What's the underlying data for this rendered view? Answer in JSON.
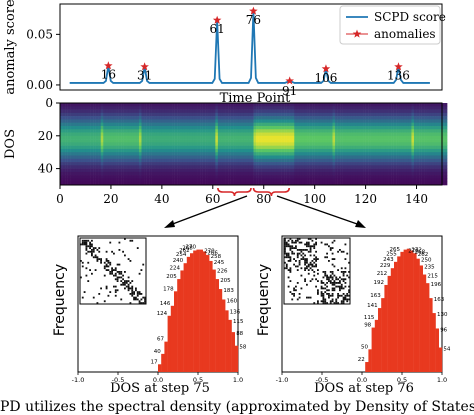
{
  "chart_data": [
    {
      "id": "score",
      "type": "line",
      "ylabel": "anomaly score",
      "xlabel": "Time Point",
      "xlim": [
        -4,
        154
      ],
      "ylim": [
        -0.005,
        0.08
      ],
      "yticks": [
        0.0,
        0.05
      ],
      "ytick_labels": [
        "0.00",
        "0.05"
      ],
      "legend_position": "top-right",
      "colors": {
        "line": "#1f77b4",
        "marker": "#d62728"
      },
      "series": [
        {
          "name": "SCPD score",
          "x": [
            0,
            1,
            2,
            3,
            4,
            5,
            6,
            7,
            8,
            9,
            10,
            11,
            12,
            13,
            14,
            15,
            16,
            17,
            18,
            19,
            20,
            21,
            22,
            23,
            24,
            25,
            26,
            27,
            28,
            29,
            30,
            31,
            32,
            33,
            34,
            35,
            36,
            37,
            38,
            39,
            40,
            41,
            42,
            43,
            44,
            45,
            46,
            47,
            48,
            49,
            50,
            51,
            52,
            53,
            54,
            55,
            56,
            57,
            58,
            59,
            60,
            61,
            62,
            63,
            64,
            65,
            66,
            67,
            68,
            69,
            70,
            71,
            72,
            73,
            74,
            75,
            76,
            77,
            78,
            79,
            80,
            81,
            82,
            83,
            84,
            85,
            86,
            87,
            88,
            89,
            90,
            91,
            92,
            93,
            94,
            95,
            96,
            97,
            98,
            99,
            100,
            101,
            102,
            103,
            104,
            105,
            106,
            107,
            108,
            109,
            110,
            111,
            112,
            113,
            114,
            115,
            116,
            117,
            118,
            119,
            120,
            121,
            122,
            123,
            124,
            125,
            126,
            127,
            128,
            129,
            130,
            131,
            132,
            133,
            134,
            135,
            136,
            137,
            138,
            139,
            140,
            141,
            142,
            143,
            144,
            145,
            146,
            147,
            148,
            149
          ],
          "y": [
            0.002,
            0.002,
            0.002,
            0.002,
            0.002,
            0.002,
            0.002,
            0.002,
            0.002,
            0.002,
            0.002,
            0.002,
            0.002,
            0.002,
            0.002,
            0.004,
            0.019,
            0.004,
            0.002,
            0.002,
            0.002,
            0.002,
            0.002,
            0.002,
            0.002,
            0.002,
            0.002,
            0.002,
            0.002,
            0.002,
            0.004,
            0.018,
            0.004,
            0.002,
            0.002,
            0.002,
            0.002,
            0.002,
            0.002,
            0.002,
            0.002,
            0.002,
            0.002,
            0.002,
            0.002,
            0.002,
            0.002,
            0.002,
            0.002,
            0.002,
            0.002,
            0.002,
            0.002,
            0.002,
            0.002,
            0.002,
            0.002,
            0.002,
            0.002,
            0.002,
            0.006,
            0.064,
            0.006,
            0.002,
            0.002,
            0.002,
            0.002,
            0.002,
            0.002,
            0.002,
            0.002,
            0.002,
            0.002,
            0.002,
            0.002,
            0.007,
            0.073,
            0.007,
            0.002,
            0.002,
            0.002,
            0.002,
            0.002,
            0.002,
            0.002,
            0.002,
            0.002,
            0.002,
            0.002,
            0.002,
            0.003,
            0.004,
            0.003,
            0.002,
            0.002,
            0.002,
            0.002,
            0.002,
            0.002,
            0.002,
            0.002,
            0.002,
            0.002,
            0.002,
            0.002,
            0.004,
            0.016,
            0.004,
            0.002,
            0.002,
            0.002,
            0.002,
            0.002,
            0.002,
            0.002,
            0.002,
            0.002,
            0.002,
            0.002,
            0.002,
            0.002,
            0.002,
            0.002,
            0.002,
            0.002,
            0.002,
            0.002,
            0.002,
            0.002,
            0.002,
            0.002,
            0.002,
            0.002,
            0.002,
            0.002,
            0.005,
            0.018,
            0.005,
            0.002,
            0.002,
            0.002,
            0.002,
            0.002,
            0.002,
            0.002,
            0.002,
            0.002,
            0.002,
            0.002,
            0.002
          ]
        },
        {
          "name": "anomalies",
          "points": [
            {
              "x": 16,
              "y": 0.019,
              "label": "16"
            },
            {
              "x": 31,
              "y": 0.018,
              "label": "31"
            },
            {
              "x": 61,
              "y": 0.064,
              "label": "61"
            },
            {
              "x": 76,
              "y": 0.073,
              "label": "76"
            },
            {
              "x": 91,
              "y": 0.004,
              "label": "91"
            },
            {
              "x": 106,
              "y": 0.016,
              "label": "106"
            },
            {
              "x": 136,
              "y": 0.018,
              "label": "136"
            }
          ]
        }
      ]
    },
    {
      "id": "dos_heatmap",
      "type": "heatmap",
      "ylabel": "DOS",
      "xlim": [
        0,
        150
      ],
      "ylim": [
        50,
        0
      ],
      "xticks": [
        0,
        20,
        40,
        60,
        80,
        100,
        120,
        140
      ],
      "yticks": [
        0,
        20,
        40
      ],
      "colormap": "viridis",
      "column_intensity": [
        0.62,
        0.62,
        0.62,
        0.62,
        0.62,
        0.62,
        0.62,
        0.62,
        0.62,
        0.62,
        0.62,
        0.62,
        0.62,
        0.62,
        0.62,
        0.62,
        0.85,
        0.68,
        0.68,
        0.68,
        0.68,
        0.68,
        0.68,
        0.68,
        0.68,
        0.68,
        0.68,
        0.68,
        0.68,
        0.68,
        0.68,
        0.85,
        0.6,
        0.6,
        0.6,
        0.6,
        0.6,
        0.6,
        0.6,
        0.6,
        0.6,
        0.6,
        0.6,
        0.6,
        0.6,
        0.6,
        0.6,
        0.6,
        0.6,
        0.6,
        0.6,
        0.6,
        0.6,
        0.6,
        0.6,
        0.6,
        0.6,
        0.6,
        0.6,
        0.6,
        0.6,
        0.9,
        0.63,
        0.63,
        0.63,
        0.63,
        0.63,
        0.63,
        0.63,
        0.63,
        0.63,
        0.63,
        0.63,
        0.63,
        0.63,
        0.63,
        0.9,
        0.95,
        0.95,
        0.95,
        0.95,
        0.95,
        0.95,
        0.95,
        0.95,
        0.95,
        0.95,
        0.95,
        0.95,
        0.95,
        0.95,
        0.95,
        0.72,
        0.72,
        0.72,
        0.72,
        0.72,
        0.72,
        0.72,
        0.72,
        0.72,
        0.72,
        0.72,
        0.72,
        0.72,
        0.72,
        0.72,
        0.88,
        0.7,
        0.7,
        0.7,
        0.7,
        0.7,
        0.7,
        0.7,
        0.7,
        0.7,
        0.7,
        0.7,
        0.7,
        0.7,
        0.7,
        0.7,
        0.7,
        0.7,
        0.7,
        0.7,
        0.7,
        0.7,
        0.7,
        0.7,
        0.7,
        0.7,
        0.7,
        0.7,
        0.7,
        0.7,
        0.7,
        0.9,
        0.7,
        0.7,
        0.7,
        0.7,
        0.7,
        0.7,
        0.7,
        0.7,
        0.7,
        0.7,
        0.7,
        0.7,
        0.7
      ],
      "brackets": [
        [
          62,
          75
        ],
        [
          76,
          90
        ]
      ]
    },
    {
      "id": "hist_75",
      "type": "bar",
      "ylabel": "Frequency",
      "xlabel": "DOS at step 75",
      "xlim": [
        -1.0,
        1.0
      ],
      "xticks": [
        -1.0,
        -0.5,
        0.0,
        0.5,
        1.0
      ],
      "xtick_labels": [
        "-1.0",
        "-0.5",
        "0.0",
        "0.5",
        "1.0"
      ],
      "colors": {
        "bar": "#e8391f"
      },
      "bins": [
        0.02,
        0.06,
        0.1,
        0.14,
        0.18,
        0.22,
        0.26,
        0.3,
        0.34,
        0.38,
        0.42,
        0.46,
        0.5,
        0.54,
        0.58,
        0.62,
        0.66,
        0.7,
        0.74,
        0.78,
        0.82,
        0.86,
        0.9,
        0.94,
        0.98
      ],
      "values": [
        17,
        40,
        67,
        124,
        146,
        178,
        205,
        224,
        240,
        254,
        262,
        268,
        270,
        270,
        266,
        258,
        245,
        226,
        205,
        183,
        160,
        136,
        115,
        88,
        58
      ],
      "data_labels": [
        "17",
        "40",
        "67",
        "124",
        "146",
        "178",
        "205",
        "224",
        "240",
        "254",
        "262",
        "268",
        "270",
        "270",
        "266",
        "258",
        "245",
        "226",
        "205",
        "183",
        "160",
        "136",
        "115",
        "88",
        "58"
      ],
      "inset": "adjacency matrix"
    },
    {
      "id": "hist_76",
      "type": "bar",
      "ylabel": "Frequency",
      "xlabel": "DOS at step 76",
      "xlim": [
        -1.0,
        1.0
      ],
      "xticks": [
        -1.0,
        -0.5,
        0.0,
        0.5,
        1.0
      ],
      "xtick_labels": [
        "-1.0",
        "-0.5",
        "0.0",
        "0.5",
        "1.0"
      ],
      "colors": {
        "bar": "#e8391f"
      },
      "bins": [
        0.06,
        0.1,
        0.14,
        0.18,
        0.22,
        0.26,
        0.3,
        0.34,
        0.38,
        0.42,
        0.46,
        0.5,
        0.54,
        0.58,
        0.62,
        0.66,
        0.7,
        0.74,
        0.78,
        0.82,
        0.86,
        0.9,
        0.94,
        0.98
      ],
      "values": [
        22,
        50,
        98,
        115,
        141,
        163,
        192,
        212,
        229,
        243,
        255,
        265,
        270,
        272,
        268,
        262,
        250,
        235,
        215,
        196,
        163,
        130,
        96,
        54
      ],
      "data_labels": [
        "22",
        "50",
        "98",
        "115",
        "141",
        "163",
        "192",
        "212",
        "229",
        "243",
        "255",
        "265",
        "270",
        "272",
        "268",
        "262",
        "250",
        "235",
        "215",
        "196",
        "163",
        "130",
        "96",
        "54"
      ],
      "inset": "adjacency matrix"
    }
  ],
  "caption": "PD utilizes the spectral density (approximated by Density of States (DOS"
}
